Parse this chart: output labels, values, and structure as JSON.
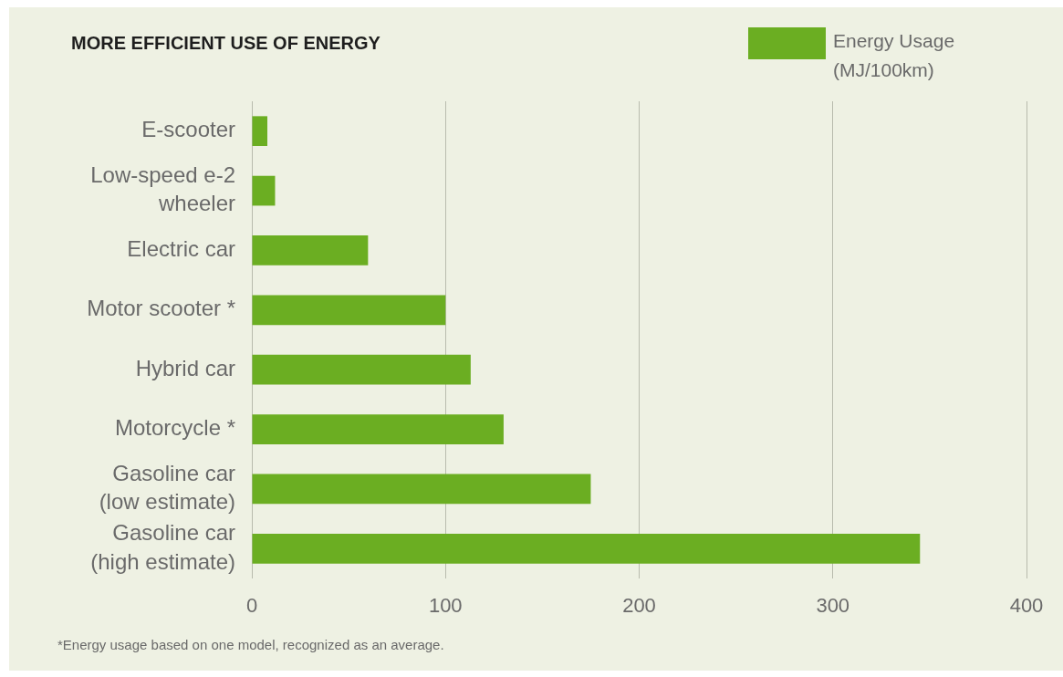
{
  "chart_data": {
    "type": "bar",
    "orientation": "horizontal",
    "title": "MORE EFFICIENT USE OF ENERGY",
    "categories": [
      "E-scooter",
      "Low-speed e-2 wheeler",
      "Electric car",
      "Motor scooter *",
      "Hybrid car",
      "Motorcycle *",
      "Gasoline car (low estimate)",
      "Gasoline car (high estimate)"
    ],
    "series": [
      {
        "name": "Energy Usage (MJ/100km)",
        "color": "#6bae22",
        "values": [
          8,
          12,
          60,
          100,
          113,
          130,
          175,
          345
        ]
      }
    ],
    "xlim": [
      0,
      400
    ],
    "xticks": [
      0,
      100,
      200,
      300,
      400
    ],
    "grid": "x",
    "legend": "top right",
    "annotations": [
      "*Energy usage based on one model, recognized as an average."
    ]
  }
}
